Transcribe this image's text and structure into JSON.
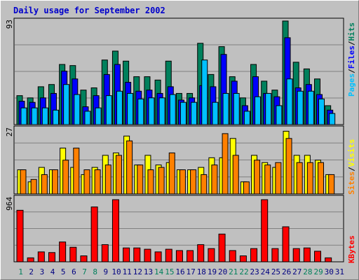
{
  "title": "Daily usage for September 2002",
  "colors": {
    "hits": "#00805c",
    "files": "#0000ff",
    "pages": "#00c0ff",
    "visits": "#ffff00",
    "sites": "#ff8000",
    "kbytes": "#ff0000",
    "weekend_label": "#00805c",
    "weekday_label": "#000080"
  },
  "chart_data": [
    {
      "type": "bar",
      "categories": [
        "1",
        "2",
        "3",
        "4",
        "5",
        "6",
        "7",
        "8",
        "9",
        "10",
        "11",
        "12",
        "13",
        "14",
        "15",
        "16",
        "17",
        "18",
        "19",
        "20",
        "21",
        "22",
        "23",
        "24",
        "25",
        "26",
        "27",
        "28",
        "29",
        "30",
        "31"
      ],
      "ylim": [
        0,
        93
      ],
      "ytick_label": "93",
      "legend": [
        "Pages",
        "Files",
        "Hits"
      ],
      "series": [
        {
          "name": "Hits",
          "values": [
            26,
            24,
            34,
            36,
            54,
            53,
            31,
            33,
            58,
            66,
            57,
            43,
            43,
            40,
            57,
            28,
            28,
            73,
            45,
            70,
            43,
            24,
            54,
            39,
            31,
            93,
            56,
            50,
            41,
            17,
            0
          ]
        },
        {
          "name": "Files",
          "values": [
            21,
            20,
            24,
            28,
            48,
            41,
            16,
            26,
            45,
            54,
            38,
            30,
            31,
            28,
            34,
            22,
            24,
            35,
            34,
            63,
            39,
            17,
            43,
            28,
            25,
            78,
            33,
            36,
            27,
            13,
            0
          ]
        },
        {
          "name": "Pages",
          "values": [
            15,
            15,
            15,
            13,
            36,
            27,
            12,
            15,
            26,
            30,
            28,
            23,
            24,
            24,
            27,
            20,
            20,
            58,
            20,
            28,
            28,
            12,
            25,
            28,
            17,
            41,
            30,
            30,
            23,
            10,
            0
          ]
        }
      ]
    },
    {
      "type": "bar",
      "categories": [
        "1",
        "2",
        "3",
        "4",
        "5",
        "6",
        "7",
        "8",
        "9",
        "10",
        "11",
        "12",
        "13",
        "14",
        "15",
        "16",
        "17",
        "18",
        "19",
        "20",
        "21",
        "22",
        "23",
        "24",
        "25",
        "26",
        "27",
        "28",
        "29",
        "30",
        "31"
      ],
      "ylim": [
        0,
        27
      ],
      "ytick_label": "27",
      "legend": [
        "Sites",
        "Visits"
      ],
      "series": [
        {
          "name": "Visits",
          "values": [
            10,
            5,
            11,
            10,
            19,
            11,
            8,
            11,
            16,
            17,
            24,
            12,
            16,
            12,
            13,
            10,
            10,
            11,
            15,
            15,
            23,
            5,
            16,
            13,
            11,
            26,
            16,
            16,
            14,
            8,
            0
          ]
        },
        {
          "name": "Sites",
          "values": [
            10,
            6,
            8,
            10,
            14,
            19,
            10,
            10,
            12,
            16,
            22,
            12,
            10,
            11,
            17,
            10,
            10,
            8,
            12,
            25,
            16,
            5,
            14,
            12,
            13,
            23,
            13,
            13,
            13,
            8,
            0
          ]
        }
      ]
    },
    {
      "type": "bar",
      "categories": [
        "1",
        "2",
        "3",
        "4",
        "5",
        "6",
        "7",
        "8",
        "9",
        "10",
        "11",
        "12",
        "13",
        "14",
        "15",
        "16",
        "17",
        "18",
        "19",
        "20",
        "21",
        "22",
        "23",
        "24",
        "25",
        "26",
        "27",
        "28",
        "29",
        "30",
        "31"
      ],
      "ylim": [
        0,
        964
      ],
      "ytick_label": "964",
      "legend": [
        "KBytes"
      ],
      "series": [
        {
          "name": "KBytes",
          "values": [
            780,
            60,
            150,
            140,
            300,
            220,
            90,
            830,
            260,
            940,
            210,
            210,
            190,
            150,
            190,
            170,
            170,
            260,
            200,
            420,
            170,
            90,
            200,
            940,
            200,
            530,
            200,
            210,
            160,
            60,
            0
          ]
        }
      ]
    }
  ],
  "weekend_days": [
    1,
    7,
    8,
    14,
    15,
    21,
    22,
    28,
    29
  ]
}
